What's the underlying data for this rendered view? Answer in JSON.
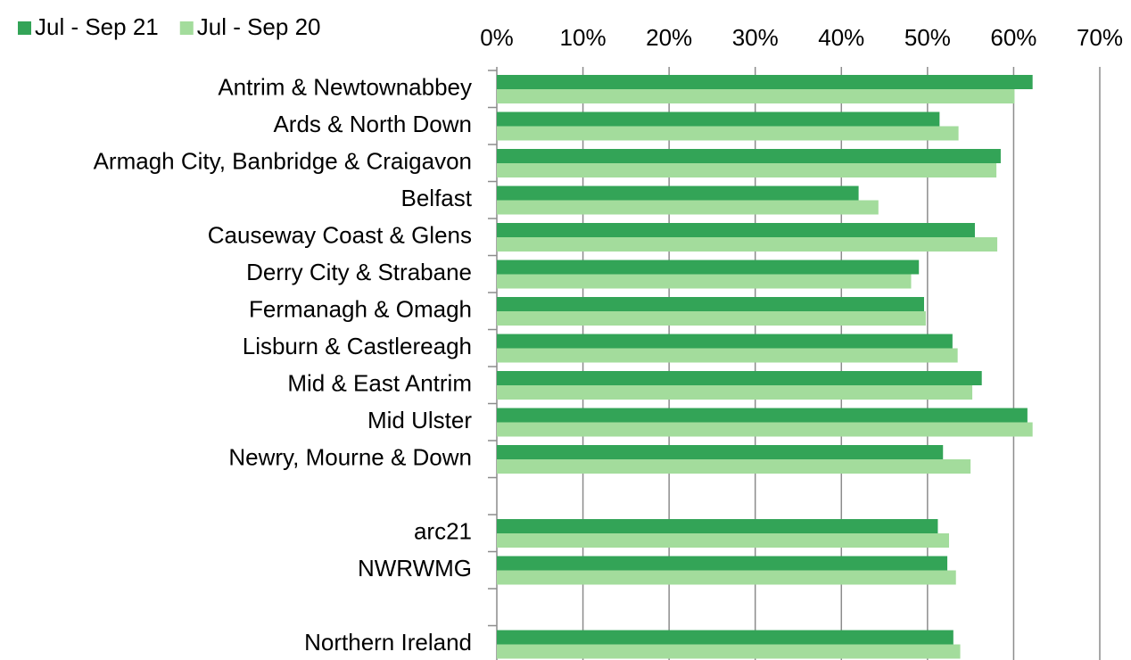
{
  "chart_data": {
    "type": "bar",
    "orientation": "horizontal",
    "categories": [
      "Antrim & Newtownabbey",
      "Ards & North Down",
      "Armagh City, Banbridge & Craigavon",
      "Belfast",
      "Causeway Coast & Glens",
      "Derry City & Strabane",
      "Fermanagh & Omagh",
      "Lisburn & Castlereagh",
      "Mid & East Antrim",
      "Mid Ulster",
      "Newry, Mourne & Down",
      null,
      "arc21",
      "NWRWMG",
      null,
      "Northern Ireland"
    ],
    "series": [
      {
        "name": "Jul - Sep 21",
        "color": "#33a457",
        "values": [
          62.2,
          51.4,
          58.5,
          42.0,
          55.5,
          49.0,
          49.6,
          52.9,
          56.3,
          61.6,
          51.8,
          null,
          51.2,
          52.3,
          null,
          53.0
        ]
      },
      {
        "name": "Jul - Sep 20",
        "color": "#a3dc9c",
        "values": [
          60.1,
          53.6,
          58.0,
          44.3,
          58.1,
          48.1,
          49.8,
          53.5,
          55.2,
          62.2,
          55.0,
          null,
          52.5,
          53.3,
          null,
          53.8
        ]
      }
    ],
    "xlim": [
      0,
      70
    ],
    "xticks": [
      {
        "value": 0,
        "label": "0%"
      },
      {
        "value": 10,
        "label": "10%"
      },
      {
        "value": 20,
        "label": "20%"
      },
      {
        "value": 30,
        "label": "30%"
      },
      {
        "value": 40,
        "label": "40%"
      },
      {
        "value": 50,
        "label": "50%"
      },
      {
        "value": 60,
        "label": "60%"
      },
      {
        "value": 70,
        "label": "70%"
      }
    ],
    "grid": true,
    "legend": "top-left"
  }
}
